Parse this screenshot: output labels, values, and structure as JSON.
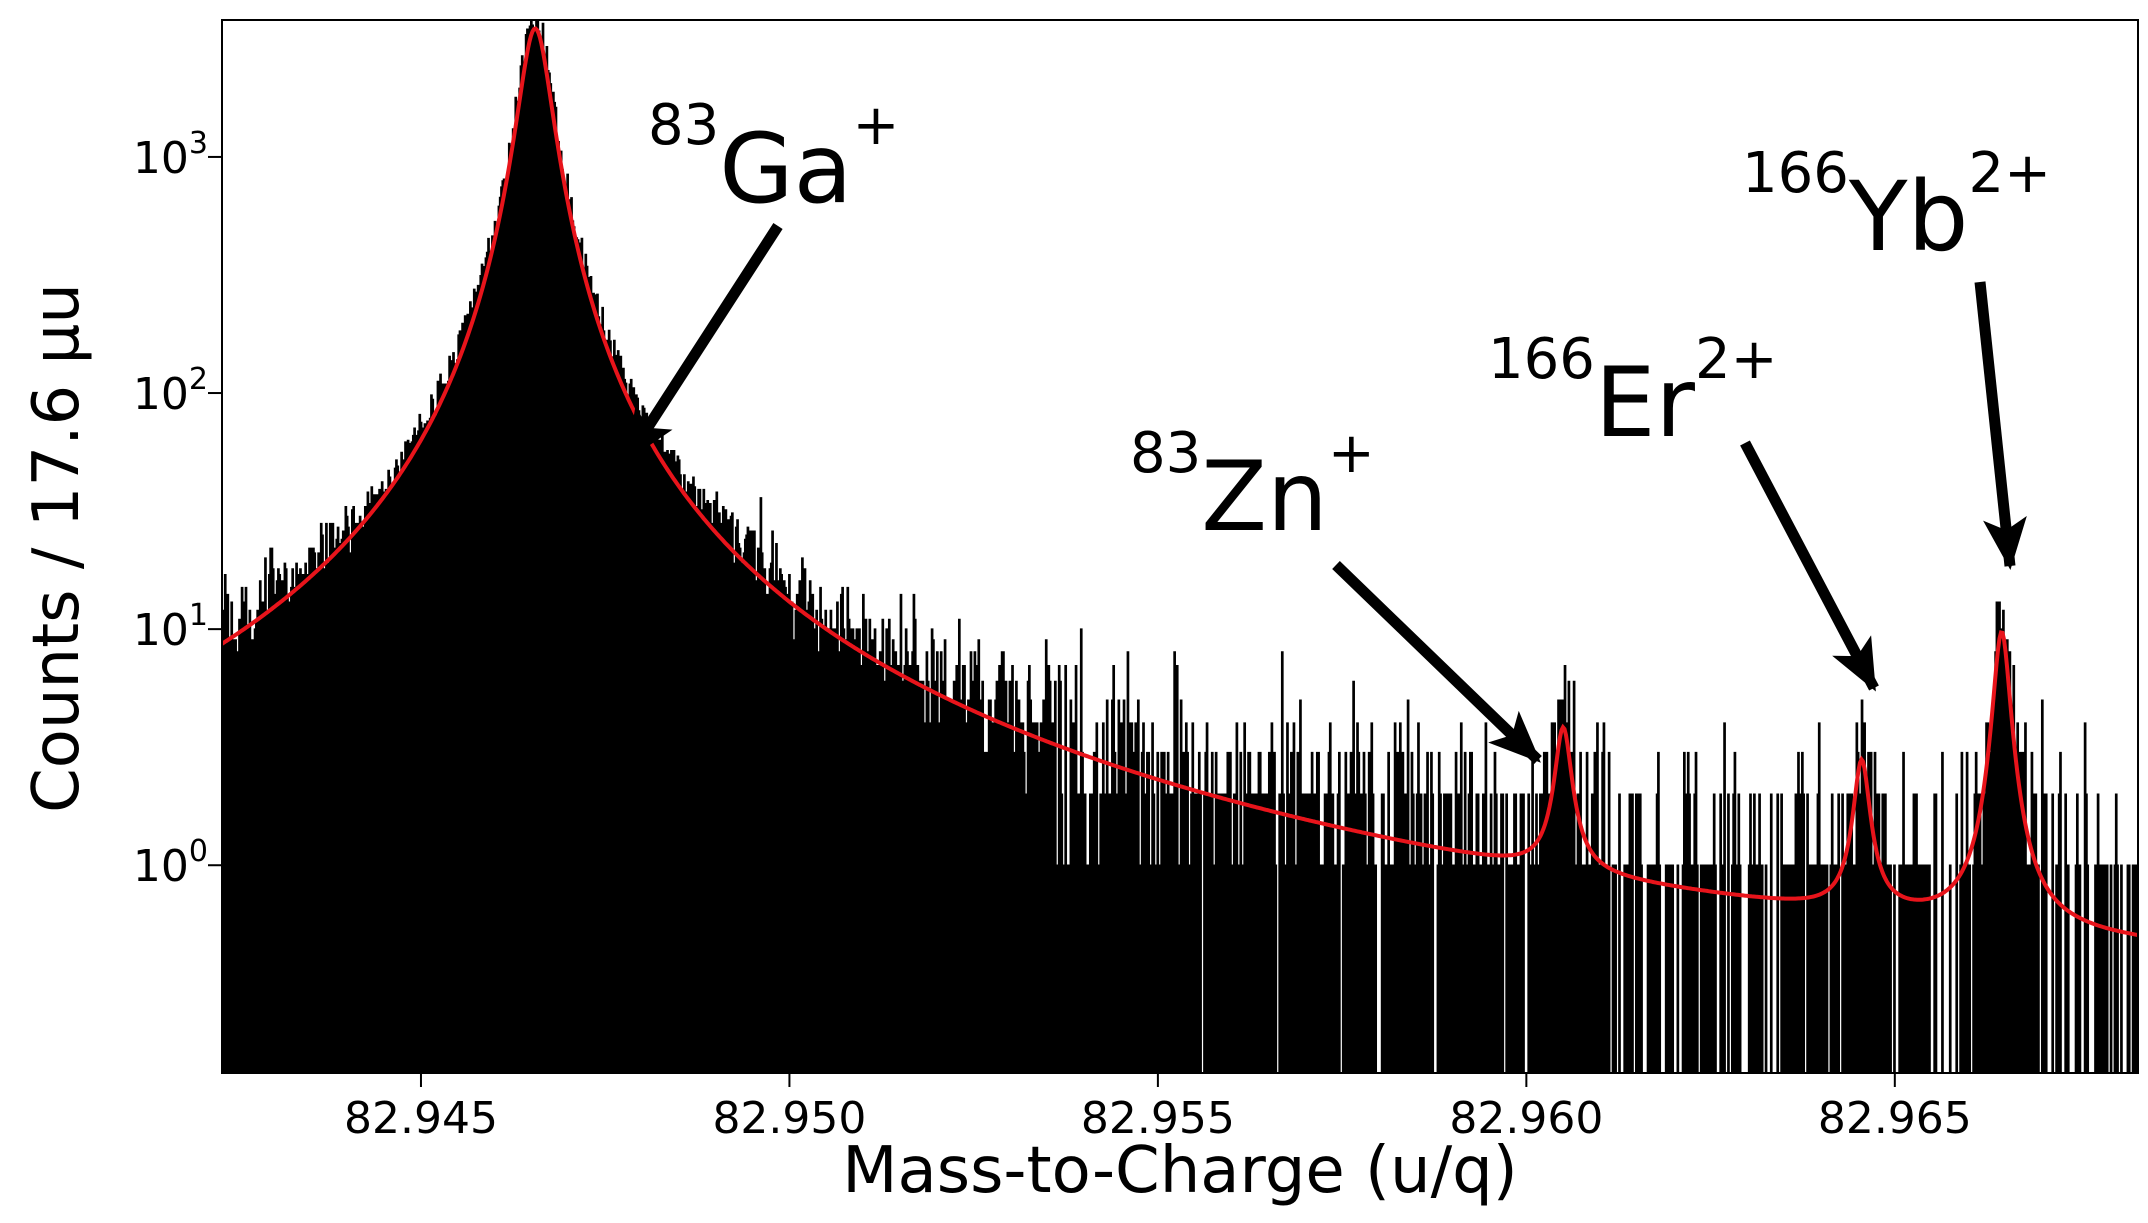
{
  "chart_data": {
    "type": "histogram",
    "xlabel": "Mass-to-Charge (u/q)",
    "ylabel": "Counts / 17.6 μu",
    "xlim": [
      82.9423,
      82.9683
    ],
    "yscale": "log",
    "ylim_exponent": [
      -0.88,
      3.58
    ],
    "xticks": [
      "82.945",
      "82.950",
      "82.955",
      "82.960",
      "82.965"
    ],
    "xtick_values": [
      82.945,
      82.95,
      82.955,
      82.96,
      82.965
    ],
    "yticks": [
      {
        "base": "10",
        "exp": "0",
        "value": 1
      },
      {
        "base": "10",
        "exp": "1",
        "value": 10
      },
      {
        "base": "10",
        "exp": "2",
        "value": 100
      },
      {
        "base": "10",
        "exp": "3",
        "value": 1000
      }
    ],
    "histogram_color": "#000000",
    "fit_color": "#e8141b",
    "fit_background": 0.145,
    "peaks": [
      {
        "label_mass": "83",
        "label_element": "Ga",
        "label_charge": "+",
        "center": 82.94655,
        "amplitude": 3500,
        "width": 0.00021
      },
      {
        "label_mass": "83",
        "label_element": "Zn",
        "label_charge": "+",
        "center": 82.9605,
        "amplitude": 2.9,
        "width": 0.000115
      },
      {
        "label_mass": "166",
        "label_element": "Er",
        "label_charge": "2+",
        "center": 82.96455,
        "amplitude": 2.15,
        "width": 0.00011
      },
      {
        "label_mass": "166",
        "label_element": "Yb",
        "label_charge": "2+",
        "center": 82.96645,
        "amplitude": 9.2,
        "width": 0.00011
      }
    ]
  }
}
